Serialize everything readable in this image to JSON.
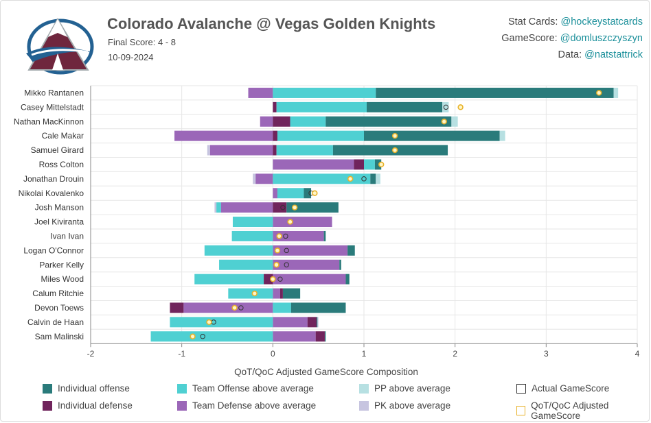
{
  "header": {
    "title": "Colorado Avalanche @ Vegas Golden Knights",
    "final_score": "Final Score: 4 - 8",
    "date": "10-09-2024"
  },
  "credits": {
    "stat_cards_label": "Stat Cards:",
    "stat_cards_handle": "@hockeystatcards",
    "gamescore_label": "GameScore:",
    "gamescore_handle": "@domluszczyszyn",
    "data_label": "Data:",
    "data_handle": "@natstattrick"
  },
  "colors": {
    "individual_offense": "#2a7b7b",
    "individual_defense": "#70245c",
    "team_offense": "#4fd0d2",
    "team_defense": "#9b67b8",
    "pp": "#b7e0e2",
    "pk": "#c7c5e0",
    "adjusted_marker": "#e8b22a",
    "logo_maroon": "#6f263d",
    "logo_blue": "#236192"
  },
  "legend": [
    {
      "key": "individual_offense",
      "label": "Individual offense"
    },
    {
      "key": "team_offense",
      "label": "Team Offense above average"
    },
    {
      "key": "pp",
      "label": "PP above average"
    },
    {
      "key": "actual",
      "label": "Actual GameScore"
    },
    {
      "key": "individual_defense",
      "label": "Individual defense"
    },
    {
      "key": "team_defense",
      "label": "Team Defense above average"
    },
    {
      "key": "pk",
      "label": "PK above average"
    },
    {
      "key": "adjusted",
      "label": "QoT/QoC Adjusted GameScore"
    }
  ],
  "chart_data": {
    "type": "bar",
    "orientation": "horizontal",
    "stacked": true,
    "xlabel": "QoT/QoC Adjusted GameScore Composition",
    "xlim": [
      -2,
      4
    ],
    "xticks": [
      "-2",
      "-1",
      "0",
      "1",
      "2",
      "3",
      "4"
    ],
    "grid": true,
    "legend_position": "bottom",
    "players": [
      {
        "name": "Mikko Rantanen",
        "team_offense": 1.13,
        "individual_offense": 2.61,
        "pp": 0.05,
        "team_defense": -0.27,
        "individual_defense": 0,
        "pk": 0,
        "actual": 3.58,
        "adjusted": 3.58
      },
      {
        "name": "Casey Mittelstadt",
        "team_offense": 0.99,
        "individual_offense": 0.83,
        "pp": 0.07,
        "team_defense": 0,
        "individual_defense": 0.04,
        "pk": 0,
        "actual": 1.9,
        "adjusted": 2.06
      },
      {
        "name": "Nathan MacKinnon",
        "team_offense": 0.39,
        "individual_offense": 1.38,
        "pp": 0.07,
        "team_defense": -0.14,
        "individual_defense": 0.19,
        "pk": 0,
        "actual": 1.88,
        "adjusted": 1.88
      },
      {
        "name": "Cale Makar",
        "team_offense": 0.95,
        "individual_offense": 1.49,
        "pp": 0.06,
        "team_defense": -1.08,
        "individual_defense": 0.05,
        "pk": 0,
        "actual": 1.34,
        "adjusted": 1.34
      },
      {
        "name": "Samuel Girard",
        "team_offense": 0.62,
        "individual_offense": 1.26,
        "pp": 0,
        "team_defense": -0.69,
        "individual_defense": 0.04,
        "pk": -0.03,
        "actual": 1.34,
        "adjusted": 1.34
      },
      {
        "name": "Ross Colton",
        "team_offense": 0.12,
        "individual_offense": 0.07,
        "pp": 0,
        "team_defense": 0.89,
        "individual_defense": 0.11,
        "pk": 0,
        "actual": 1.19,
        "adjusted": 1.19
      },
      {
        "name": "Jonathan Drouin",
        "team_offense": 1.07,
        "individual_offense": 0.06,
        "pp": 0.05,
        "team_defense": -0.19,
        "individual_defense": 0,
        "pk": -0.03,
        "actual": 1.0,
        "adjusted": 0.85
      },
      {
        "name": "Nikolai Kovalenko",
        "team_offense": 0.29,
        "individual_offense": 0.08,
        "pp": 0,
        "team_defense": 0.05,
        "individual_defense": 0,
        "pk": 0,
        "actual": 0.42,
        "adjusted": 0.46
      },
      {
        "name": "Josh Manson",
        "team_offense": -0.05,
        "individual_offense": 0.57,
        "pp": 0,
        "team_defense": -0.57,
        "individual_defense": 0.15,
        "pk": -0.02,
        "actual": 0.11,
        "adjusted": 0.24
      },
      {
        "name": "Joel Kiviranta",
        "team_offense": -0.44,
        "individual_offense": 0,
        "pp": 0,
        "team_defense": 0.65,
        "individual_defense": 0,
        "pk": 0,
        "actual": 0.19,
        "adjusted": 0.19
      },
      {
        "name": "Ivan Ivan",
        "team_offense": -0.45,
        "individual_offense": 0.02,
        "pp": 0,
        "team_defense": 0.56,
        "individual_defense": 0,
        "pk": 0,
        "actual": 0.14,
        "adjusted": 0.07
      },
      {
        "name": "Logan O'Connor",
        "team_offense": -0.75,
        "individual_offense": 0.08,
        "pp": 0,
        "team_defense": 0.82,
        "individual_defense": 0,
        "pk": 0,
        "actual": 0.15,
        "adjusted": 0.05
      },
      {
        "name": "Parker Kelly",
        "team_offense": -0.59,
        "individual_offense": 0.02,
        "pp": 0,
        "team_defense": 0.73,
        "individual_defense": 0,
        "pk": 0,
        "actual": 0.15,
        "adjusted": 0.04
      },
      {
        "name": "Miles Wood",
        "team_offense": -0.76,
        "individual_offense": 0.04,
        "pp": 0,
        "team_defense": 0.8,
        "individual_defense": -0.1,
        "pk": 0,
        "actual": 0.08,
        "adjusted": 0.0
      },
      {
        "name": "Calum Ritchie",
        "team_offense": -0.49,
        "individual_offense": 0.19,
        "pp": 0,
        "team_defense": 0.08,
        "individual_defense": 0.03,
        "pk": 0,
        "actual": -0.2,
        "adjusted": -0.2
      },
      {
        "name": "Devon Toews",
        "team_offense": 0.2,
        "individual_offense": 0.6,
        "pp": 0,
        "team_defense": -0.98,
        "individual_defense": -0.15,
        "pk": 0,
        "actual": -0.35,
        "adjusted": -0.42
      },
      {
        "name": "Calvin de Haan",
        "team_offense": -1.13,
        "individual_offense": 0.01,
        "pp": 0,
        "team_defense": 0.38,
        "individual_defense": 0.1,
        "pk": 0.01,
        "actual": -0.65,
        "adjusted": -0.7
      },
      {
        "name": "Sam Malinski",
        "team_offense": -1.34,
        "individual_offense": 0.01,
        "pp": 0,
        "team_defense": 0.47,
        "individual_defense": 0.1,
        "pk": 0,
        "actual": -0.77,
        "adjusted": -0.88
      }
    ]
  }
}
